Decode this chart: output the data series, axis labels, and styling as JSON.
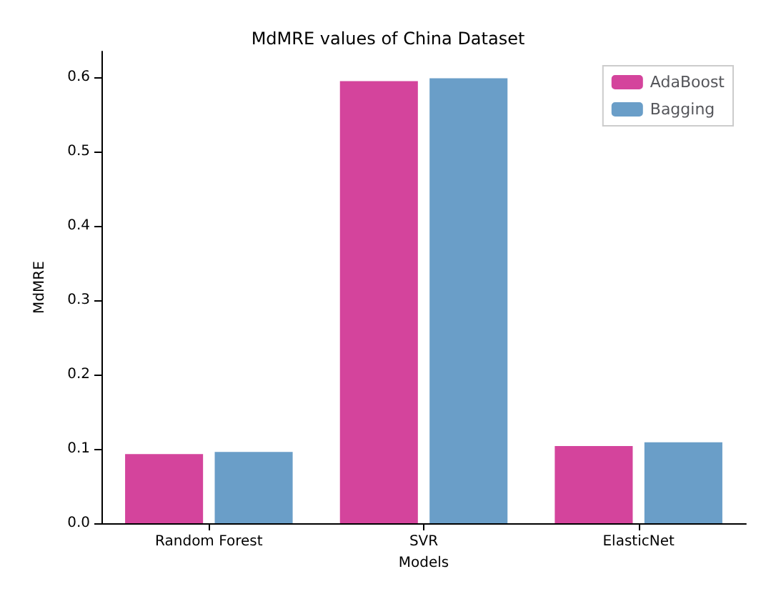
{
  "chart_data": {
    "type": "bar",
    "title": "MdMRE values of China Dataset",
    "xlabel": "Models",
    "ylabel": "MdMRE",
    "categories": [
      "Random Forest",
      "SVR",
      "ElasticNet"
    ],
    "series": [
      {
        "name": "AdaBoost",
        "color": "#d4449c",
        "values": [
          0.093,
          0.595,
          0.104
        ]
      },
      {
        "name": "Bagging",
        "color": "#6a9ec8",
        "values": [
          0.096,
          0.599,
          0.109
        ]
      }
    ],
    "ylim": [
      0,
      0.635
    ],
    "yticks": [
      {
        "value": 0,
        "label": "0.0"
      },
      0.1,
      0.2,
      0.3,
      0.4,
      0.5,
      0.6
    ],
    "grid": false,
    "legend": "top right"
  }
}
